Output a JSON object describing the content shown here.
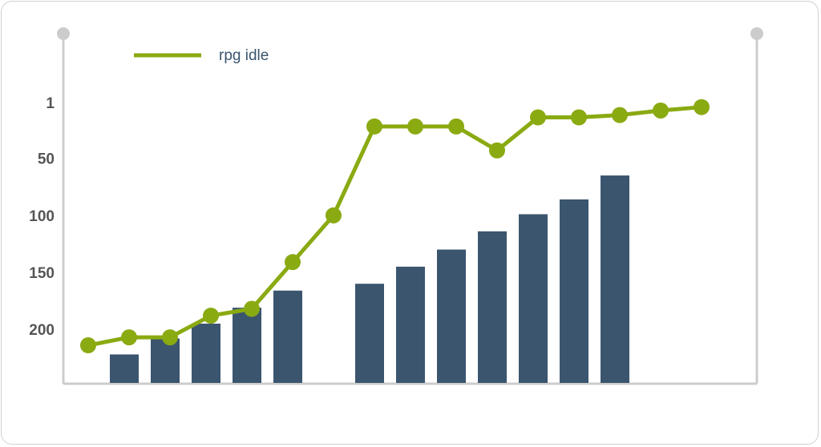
{
  "chart_data": {
    "type": "bar+line",
    "title": "",
    "xlabel": "",
    "ylabel": "",
    "y_axis": {
      "reversed": true,
      "ticks": [
        1,
        50,
        100,
        150,
        200
      ],
      "ylim": [
        1,
        247
      ]
    },
    "legend": {
      "placement": "top-left",
      "entries": [
        {
          "label": "rpg idle",
          "color": "#8aaa12",
          "type": "line"
        }
      ]
    },
    "bars": {
      "color": "#3b556f",
      "values": [
        null,
        222,
        208,
        195,
        181,
        166,
        null,
        160,
        145,
        130,
        114,
        99,
        86,
        65,
        null,
        null
      ]
    },
    "series": [
      {
        "name": "rpg idle",
        "type": "line",
        "color": "#8aaa12",
        "values": [
          214,
          207,
          207,
          188,
          182,
          141,
          100,
          22,
          22,
          22,
          43,
          14,
          14,
          12,
          8,
          5
        ]
      }
    ],
    "grid": false
  }
}
